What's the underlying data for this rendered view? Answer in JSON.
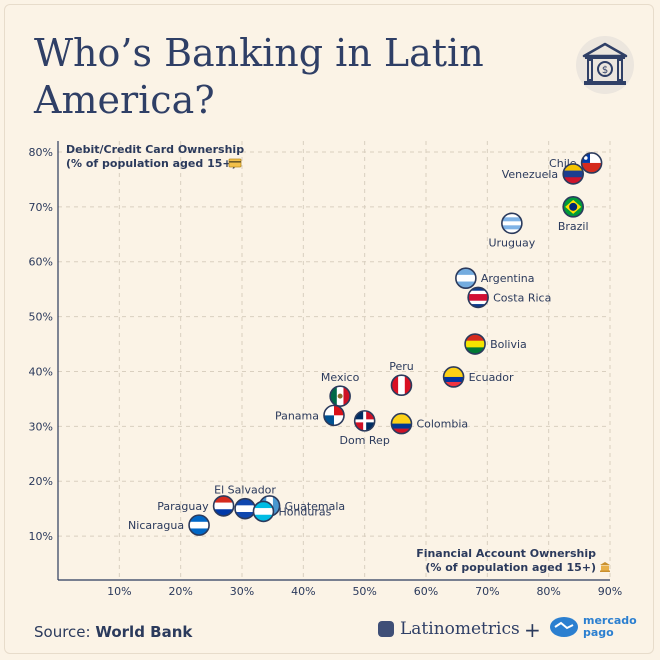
{
  "header": {
    "title": "Who’s Banking in Latin America?"
  },
  "icons": {
    "bank": "bank-building-icon",
    "card": "credit-card-icon",
    "account": "bank-icon",
    "brand_latino": "latinometrics-logo-icon",
    "brand_mp": "handshake-icon"
  },
  "footer": {
    "source_prefix": "Source: ",
    "source_name": "World Bank",
    "brand_latino": "Latinometrics",
    "plus": "+",
    "brand_mp_line1": "mercado",
    "brand_mp_line2": "pago"
  },
  "chart_data": {
    "type": "scatter",
    "ylabel_line1": "Debit/Credit Card Ownership",
    "ylabel_line2": "(% of population aged 15+)",
    "xlabel_line1": "Financial Account Ownership",
    "xlabel_line2": "(% of population aged 15+)",
    "xlim": [
      0,
      90
    ],
    "ylim": [
      2,
      82
    ],
    "x_ticks": [
      10,
      20,
      30,
      40,
      50,
      60,
      70,
      80,
      90
    ],
    "y_ticks": [
      10,
      20,
      30,
      40,
      50,
      60,
      70,
      80
    ],
    "x_tick_labels": [
      "10%",
      "20%",
      "30%",
      "40%",
      "50%",
      "60%",
      "70%",
      "80%",
      "90%"
    ],
    "y_tick_labels": [
      "10%",
      "20%",
      "30%",
      "40%",
      "50%",
      "60%",
      "70%",
      "80%"
    ],
    "grid": true,
    "points": [
      {
        "label": "Chile",
        "x": 87,
        "y": 78,
        "label_side": "left"
      },
      {
        "label": "Venezuela",
        "x": 84,
        "y": 76,
        "label_side": "left"
      },
      {
        "label": "Brazil",
        "x": 84,
        "y": 70,
        "label_side": "below"
      },
      {
        "label": "Uruguay",
        "x": 74,
        "y": 67,
        "label_side": "below"
      },
      {
        "label": "Argentina",
        "x": 66.5,
        "y": 57,
        "label_side": "right"
      },
      {
        "label": "Costa Rica",
        "x": 68.5,
        "y": 53.5,
        "label_side": "right"
      },
      {
        "label": "Bolivia",
        "x": 68,
        "y": 45,
        "label_side": "right"
      },
      {
        "label": "Ecuador",
        "x": 64.5,
        "y": 39,
        "label_side": "right"
      },
      {
        "label": "Peru",
        "x": 56,
        "y": 37.5,
        "label_side": "above"
      },
      {
        "label": "Mexico",
        "x": 46,
        "y": 35.5,
        "label_side": "above"
      },
      {
        "label": "Panama",
        "x": 45,
        "y": 32,
        "label_side": "left"
      },
      {
        "label": "Dom Rep",
        "x": 50,
        "y": 31,
        "label_side": "below"
      },
      {
        "label": "Colombia",
        "x": 56,
        "y": 30.5,
        "label_side": "right"
      },
      {
        "label": "El Salvador",
        "x": 30.5,
        "y": 15,
        "label_side": "above"
      },
      {
        "label": "Paraguay",
        "x": 27,
        "y": 15.5,
        "label_side": "left"
      },
      {
        "label": "Guatemala",
        "x": 34.5,
        "y": 15.5,
        "label_side": "right"
      },
      {
        "label": "Honduras",
        "x": 33.5,
        "y": 14.5,
        "label_side": "right"
      },
      {
        "label": "Nicaragua",
        "x": 23,
        "y": 12,
        "label_side": "left"
      }
    ]
  }
}
